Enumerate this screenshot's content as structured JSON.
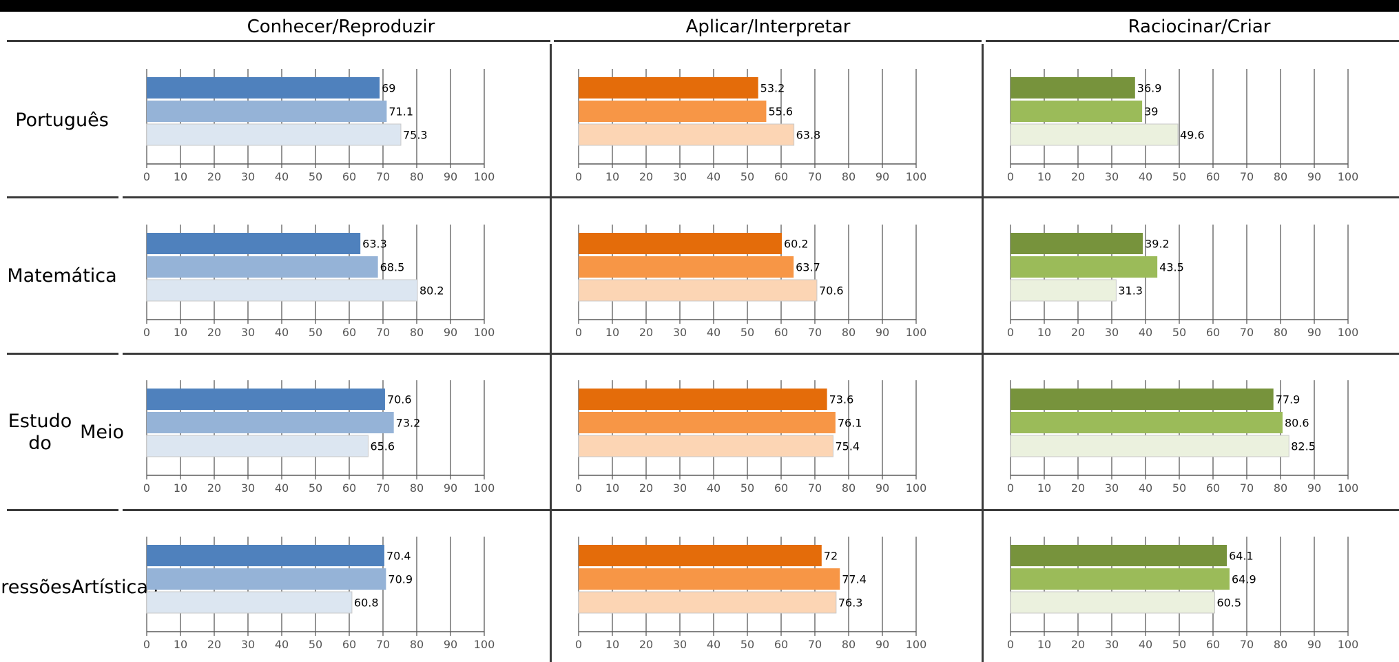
{
  "title": "",
  "columns": [
    {
      "label": "Conhecer/Reproduzir",
      "colors": [
        "#4f81bd",
        "#95b3d7",
        "#dce6f1"
      ]
    },
    {
      "label": "Aplicar/Interpretar",
      "colors": [
        "#e46c0a",
        "#f79646",
        "#fcd5b4"
      ]
    },
    {
      "label": "Raciocinar/Criar",
      "colors": [
        "#77933c",
        "#9bbb59",
        "#ebf1de"
      ]
    }
  ],
  "rows": [
    {
      "label_lines": [
        "Português"
      ]
    },
    {
      "label_lines": [
        "Matemática"
      ]
    },
    {
      "label_lines": [
        "Estudo do",
        "Meio"
      ]
    },
    {
      "label_lines": [
        "Expressões",
        "Artísticas"
      ]
    }
  ],
  "chart_data": {
    "type": "bar",
    "orientation": "horizontal",
    "xlim": [
      0,
      100
    ],
    "xticks": [
      0,
      10,
      20,
      30,
      40,
      50,
      60,
      70,
      80,
      90,
      100
    ],
    "grid": true,
    "panels": [
      {
        "row": 0,
        "col": 0,
        "values": [
          69,
          71.1,
          75.3
        ]
      },
      {
        "row": 0,
        "col": 1,
        "values": [
          53.2,
          55.6,
          63.8
        ]
      },
      {
        "row": 0,
        "col": 2,
        "values": [
          36.9,
          39,
          49.6
        ]
      },
      {
        "row": 1,
        "col": 0,
        "values": [
          63.3,
          68.5,
          80.2
        ]
      },
      {
        "row": 1,
        "col": 1,
        "values": [
          60.2,
          63.7,
          70.6
        ]
      },
      {
        "row": 1,
        "col": 2,
        "values": [
          39.2,
          43.5,
          31.3
        ]
      },
      {
        "row": 2,
        "col": 0,
        "values": [
          70.6,
          73.2,
          65.6
        ]
      },
      {
        "row": 2,
        "col": 1,
        "values": [
          73.6,
          76.1,
          75.4
        ]
      },
      {
        "row": 2,
        "col": 2,
        "values": [
          77.9,
          80.6,
          82.5
        ]
      },
      {
        "row": 3,
        "col": 0,
        "values": [
          70.4,
          70.9,
          60.8
        ]
      },
      {
        "row": 3,
        "col": 1,
        "values": [
          72,
          77.4,
          76.3
        ]
      },
      {
        "row": 3,
        "col": 2,
        "values": [
          64.1,
          64.9,
          60.5
        ]
      }
    ]
  }
}
